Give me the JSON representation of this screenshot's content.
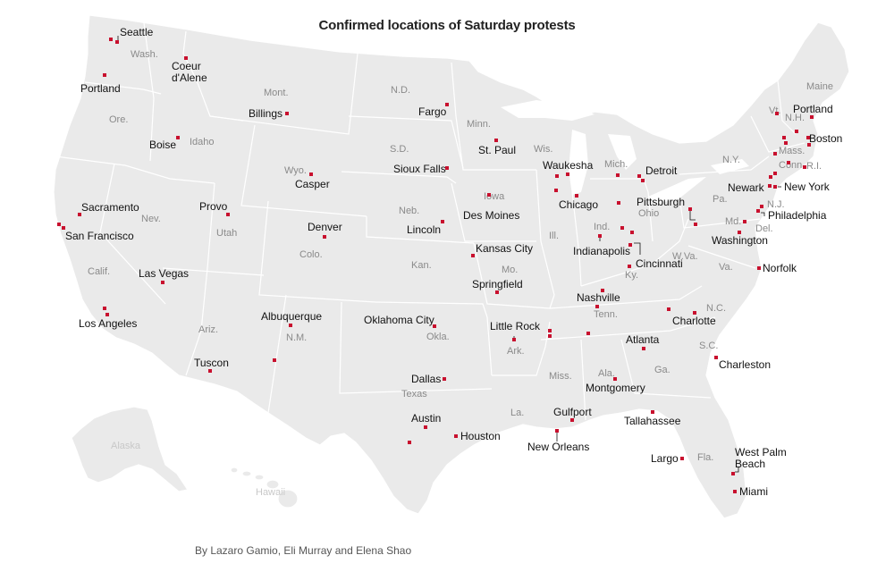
{
  "title": "Confirmed locations of Saturday protests",
  "byline": "By Lazaro Gamio, Eli Murray and Elena Shao",
  "colors": {
    "land": "#eaeaea",
    "border": "#ffffff",
    "dot": "#c8102e",
    "label": "#111111",
    "state_label": "#8a8a8a"
  },
  "state_labels": [
    "Wash.",
    "Ore.",
    "Idaho",
    "Mont.",
    "Wyo.",
    "Nev.",
    "Utah",
    "Calif.",
    "Colo.",
    "Ariz.",
    "N.M.",
    "N.D.",
    "S.D.",
    "Neb.",
    "Kan.",
    "Okla.",
    "Texas",
    "Minn.",
    "Iowa",
    "Mo.",
    "Ark.",
    "La.",
    "Wis.",
    "Ill.",
    "Mich.",
    "Ind.",
    "Ohio",
    "Ky.",
    "Tenn.",
    "Miss.",
    "Ala.",
    "Ga.",
    "Fla.",
    "S.C.",
    "N.C.",
    "Va.",
    "W.Va.",
    "Pa.",
    "N.Y.",
    "Md.",
    "Del.",
    "N.J.",
    "Conn.",
    "R.I.",
    "Mass.",
    "Vt.",
    "N.H.",
    "Maine",
    "Alaska",
    "Hawaii"
  ],
  "cities": [
    "Seattle",
    "Coeur d'Alene",
    "Portland",
    "Billings",
    "Boise",
    "Casper",
    "Sacramento",
    "San Francisco",
    "Provo",
    "Denver",
    "Las Vegas",
    "Los Angeles",
    "Albuquerque",
    "Tuscon",
    "Fargo",
    "St. Paul",
    "Sioux Falls",
    "Des Moines",
    "Lincoln",
    "Kansas City",
    "Springfield",
    "Oklahoma City",
    "Little Rock",
    "Dallas",
    "Austin",
    "Houston",
    "Waukesha",
    "Chicago",
    "Detroit",
    "Pittsburgh",
    "Indianapolis",
    "Cincinnati",
    "Nashville",
    "Charlotte",
    "Atlanta",
    "Charleston",
    "Montgomery",
    "Gulfport",
    "New Orleans",
    "Tallahassee",
    "Largo",
    "West Palm Beach",
    "Miami",
    "Portland",
    "Boston",
    "Newark",
    "New York",
    "Philadelphia",
    "Washington",
    "Norfolk"
  ]
}
